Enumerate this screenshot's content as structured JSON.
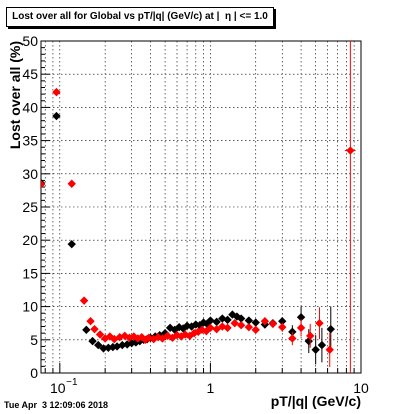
{
  "title": "Lost over all for Global vs pT/|q| (GeV/c) at |  η | <= 1.0",
  "timestamp": "Tue Apr  3 12:09:06 2018",
  "chart_data": {
    "type": "scatter",
    "title": "Lost over all for Global vs pT/|q| (GeV/c) at |  η | <= 1.0",
    "xlabel": "pT/|q| (GeV/c)",
    "ylabel": "Lost over all (%)",
    "xscale": "log",
    "xlim": [
      0.075,
      10
    ],
    "ylim": [
      0,
      50
    ],
    "grid": true,
    "xticks": [
      {
        "v": 0.1,
        "base": "10",
        "exp": "−1"
      },
      {
        "v": 1,
        "label": "1"
      },
      {
        "v": 10,
        "label": "10"
      }
    ],
    "yticks": [
      0,
      5,
      10,
      15,
      20,
      25,
      30,
      35,
      40,
      45,
      50
    ],
    "series": [
      {
        "color": "#000000",
        "points": [
          {
            "x": 0.075,
            "y": 28.6,
            "ex": 0.003
          },
          {
            "x": 0.095,
            "y": 38.7,
            "ex": 0.004
          },
          {
            "x": 0.12,
            "y": 19.4,
            "ex": 0.006
          },
          {
            "x": 0.15,
            "y": 6.5
          },
          {
            "x": 0.165,
            "y": 4.8
          },
          {
            "x": 0.18,
            "y": 4.2
          },
          {
            "x": 0.195,
            "y": 3.7
          },
          {
            "x": 0.21,
            "y": 3.8
          },
          {
            "x": 0.225,
            "y": 3.9
          },
          {
            "x": 0.24,
            "y": 4.0
          },
          {
            "x": 0.26,
            "y": 4.2
          },
          {
            "x": 0.28,
            "y": 4.3
          },
          {
            "x": 0.3,
            "y": 4.5
          },
          {
            "x": 0.32,
            "y": 4.6
          },
          {
            "x": 0.34,
            "y": 4.8
          },
          {
            "x": 0.36,
            "y": 5.0
          },
          {
            "x": 0.38,
            "y": 5.1
          },
          {
            "x": 0.4,
            "y": 5.3
          },
          {
            "x": 0.43,
            "y": 5.5
          },
          {
            "x": 0.46,
            "y": 5.7
          },
          {
            "x": 0.5,
            "y": 6.0
          },
          {
            "x": 0.54,
            "y": 6.8
          },
          {
            "x": 0.58,
            "y": 6.5
          },
          {
            "x": 0.62,
            "y": 6.9
          },
          {
            "x": 0.66,
            "y": 6.7
          },
          {
            "x": 0.7,
            "y": 7.1
          },
          {
            "x": 0.75,
            "y": 7.0
          },
          {
            "x": 0.8,
            "y": 7.3
          },
          {
            "x": 0.85,
            "y": 7.2
          },
          {
            "x": 0.9,
            "y": 7.6
          },
          {
            "x": 0.95,
            "y": 7.4
          },
          {
            "x": 1.0,
            "y": 7.9
          },
          {
            "x": 1.1,
            "y": 7.7
          },
          {
            "x": 1.2,
            "y": 8.2
          },
          {
            "x": 1.3,
            "y": 8.0
          },
          {
            "x": 1.4,
            "y": 8.8
          },
          {
            "x": 1.5,
            "y": 8.5
          },
          {
            "x": 1.6,
            "y": 8.2
          },
          {
            "x": 1.8,
            "y": 7.9
          },
          {
            "x": 2.0,
            "y": 7.6
          },
          {
            "x": 2.3,
            "y": 7.3
          },
          {
            "x": 2.6,
            "y": 7.5
          },
          {
            "x": 3.0,
            "y": 7.8,
            "ey": 0.6
          },
          {
            "x": 3.5,
            "y": 6.2,
            "ey": 1.0
          },
          {
            "x": 4.0,
            "y": 8.4,
            "ey": 1.6
          },
          {
            "x": 4.5,
            "y": 4.8,
            "ey": 1.8
          },
          {
            "x": 5.0,
            "y": 3.5,
            "ey": 2.2
          },
          {
            "x": 5.5,
            "y": 4.2,
            "ey": 2.6
          },
          {
            "x": 6.3,
            "y": 6.6,
            "ey": 3.4
          }
        ]
      },
      {
        "color": "#ff0000",
        "points": [
          {
            "x": 0.075,
            "y": 28.4,
            "ex": 0.003
          },
          {
            "x": 0.095,
            "y": 42.3,
            "ex": 0.004
          },
          {
            "x": 0.12,
            "y": 28.5,
            "ex": 0.006
          },
          {
            "x": 0.145,
            "y": 10.9
          },
          {
            "x": 0.16,
            "y": 7.8
          },
          {
            "x": 0.17,
            "y": 6.6
          },
          {
            "x": 0.185,
            "y": 5.8
          },
          {
            "x": 0.2,
            "y": 5.2
          },
          {
            "x": 0.215,
            "y": 5.5
          },
          {
            "x": 0.23,
            "y": 5.1
          },
          {
            "x": 0.25,
            "y": 5.4
          },
          {
            "x": 0.27,
            "y": 5.6
          },
          {
            "x": 0.29,
            "y": 5.3
          },
          {
            "x": 0.31,
            "y": 5.5
          },
          {
            "x": 0.33,
            "y": 5.2
          },
          {
            "x": 0.35,
            "y": 5.4
          },
          {
            "x": 0.37,
            "y": 5.0
          },
          {
            "x": 0.39,
            "y": 5.3
          },
          {
            "x": 0.42,
            "y": 5.1
          },
          {
            "x": 0.45,
            "y": 5.4
          },
          {
            "x": 0.48,
            "y": 5.2
          },
          {
            "x": 0.52,
            "y": 5.6
          },
          {
            "x": 0.56,
            "y": 5.3
          },
          {
            "x": 0.6,
            "y": 5.7
          },
          {
            "x": 0.64,
            "y": 5.5
          },
          {
            "x": 0.68,
            "y": 5.8
          },
          {
            "x": 0.73,
            "y": 5.6
          },
          {
            "x": 0.78,
            "y": 6.0
          },
          {
            "x": 0.83,
            "y": 6.2
          },
          {
            "x": 0.88,
            "y": 6.5
          },
          {
            "x": 0.94,
            "y": 6.3
          },
          {
            "x": 1.0,
            "y": 6.8
          },
          {
            "x": 1.1,
            "y": 6.6
          },
          {
            "x": 1.2,
            "y": 7.0
          },
          {
            "x": 1.3,
            "y": 6.8
          },
          {
            "x": 1.45,
            "y": 7.5
          },
          {
            "x": 1.6,
            "y": 7.2
          },
          {
            "x": 1.8,
            "y": 6.9
          },
          {
            "x": 2.0,
            "y": 6.5
          },
          {
            "x": 2.3,
            "y": 7.8
          },
          {
            "x": 2.6,
            "y": 7.4
          },
          {
            "x": 3.0,
            "y": 6.9,
            "ey": 0.7
          },
          {
            "x": 3.5,
            "y": 5.2,
            "ey": 1.0
          },
          {
            "x": 4.0,
            "y": 6.8,
            "ey": 1.3
          },
          {
            "x": 4.6,
            "y": 5.6,
            "ey": 1.8
          },
          {
            "x": 5.3,
            "y": 7.5,
            "ey": 2.4
          },
          {
            "x": 6.2,
            "y": 3.5,
            "ey": 2.6
          },
          {
            "x": 8.5,
            "y": 33.5,
            "ey": 33.5,
            "eyUp": 16.5,
            "ex": 0.7
          }
        ]
      }
    ]
  }
}
